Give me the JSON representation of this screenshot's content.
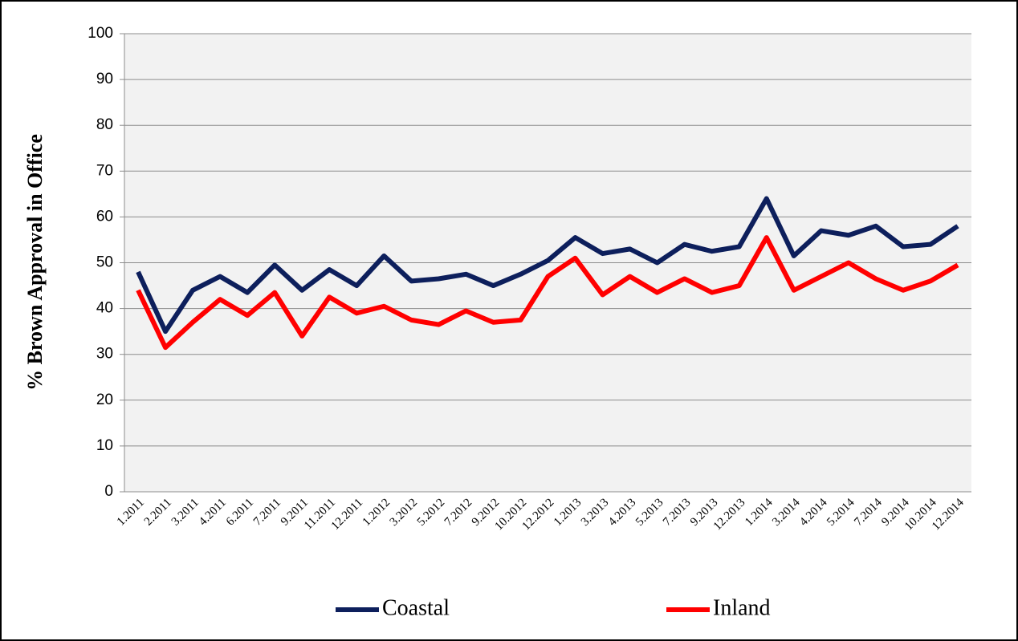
{
  "chart_data": {
    "type": "line",
    "y_label": "% Brown Approval in Office",
    "categories": [
      "1.2011",
      "2.2011",
      "3.2011",
      "4.2011",
      "6.2011",
      "7.2011",
      "9.2011",
      "11.2011",
      "12.2011",
      "1.2012",
      "3.2012",
      "5.2012",
      "7.2012",
      "9.2012",
      "10.2012",
      "12.2012",
      "1.2013",
      "3.2013",
      "4.2013",
      "5.2013",
      "7.2013",
      "9.2013",
      "12.2013",
      "1.2014",
      "3.2014",
      "4.2014",
      "5.2014",
      "7.2014",
      "9.2014",
      "10.2014",
      "12.2014"
    ],
    "series": [
      {
        "name": "Coastal",
        "color": "#0d1f5c",
        "values": [
          48,
          35,
          44,
          47,
          43.5,
          49.5,
          44,
          48.5,
          45,
          51.5,
          46,
          46.5,
          47.5,
          45,
          47.5,
          50.5,
          55.5,
          52,
          53,
          50,
          54,
          52.5,
          53.5,
          64,
          51.5,
          57,
          56,
          58,
          53.5,
          54,
          58
        ]
      },
      {
        "name": "Inland",
        "color": "#ff0000",
        "values": [
          44,
          31.5,
          37,
          42,
          38.5,
          43.5,
          34,
          42.5,
          39,
          40.5,
          37.5,
          36.5,
          39.5,
          37,
          37.5,
          47,
          51,
          43,
          47,
          43.5,
          46.5,
          43.5,
          45,
          55.5,
          44,
          47,
          50,
          46.5,
          44,
          46,
          49.5
        ]
      }
    ],
    "ylim": [
      0,
      100
    ],
    "yticks": [
      0,
      10,
      20,
      30,
      40,
      50,
      60,
      70,
      80,
      90,
      100
    ],
    "grid": true,
    "legend": "bottom"
  }
}
